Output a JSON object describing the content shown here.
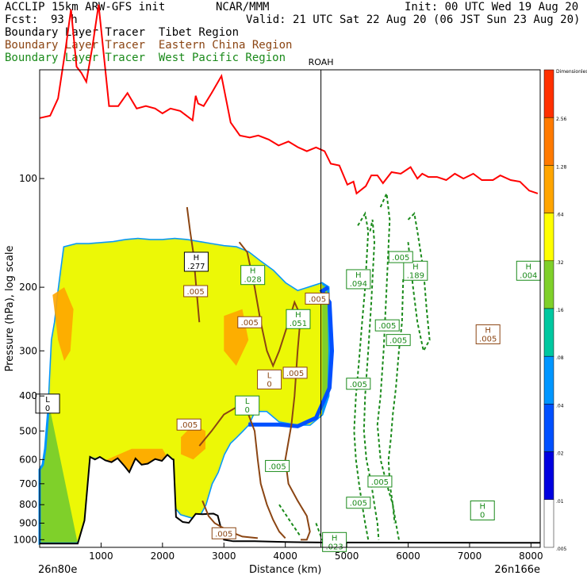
{
  "header": {
    "model": "ACCLIP 15km ARW-GFS init",
    "org": "NCAR/MMM",
    "init": "Init: 00 UTC Wed 19 Aug 20",
    "fcst_label": "Fcst:",
    "fcst_value": "93 h",
    "valid": "Valid: 21 UTC Sat 22 Aug 20 (06 JST Sun 23 Aug 20)",
    "line_tibet": "Boundary Layer Tracer  Tibet Region",
    "line_east_china": "Boundary Layer Tracer  Eastern China Region",
    "line_west_pacific": "Boundary Layer Tracer  West Pacific Region"
  },
  "colors": {
    "tibet": "#000000",
    "east_china": "#8b4513",
    "west_pacific": "#1a8a1a",
    "tropopause": "#ff0000",
    "terrain": "#000000"
  },
  "chart_data": {
    "type": "cross-section",
    "xlabel": "Distance (km)",
    "ylabel": "Pressure (hPa), log scale",
    "xlim": [
      0,
      8150
    ],
    "ylim": [
      1050,
      50
    ],
    "x_scale": "linear",
    "y_scale": "log",
    "x_ticks": [
      1000,
      2000,
      3000,
      4000,
      5000,
      6000,
      7000,
      8000
    ],
    "y_ticks": [
      100,
      200,
      300,
      400,
      500,
      600,
      700,
      800,
      900,
      1000
    ],
    "x_start_label": "26n80e",
    "x_end_label": "26n166e",
    "marker": {
      "name": "ROAH",
      "x": 4580
    },
    "colorbar": {
      "levels": [
        "Dimensionless",
        "2.56",
        "1.28",
        ".64",
        ".32",
        ".16",
        ".08",
        ".04",
        ".02",
        ".01",
        ".005"
      ],
      "colors": [
        "#ff3000",
        "#ff7a00",
        "#ffa500",
        "#ffff00",
        "#7fd02a",
        "#00c8a0",
        "#0096ff",
        "#0050ff",
        "#0000e0",
        "#ffffff"
      ]
    },
    "tropopause_red": [
      [
        0,
        68
      ],
      [
        170,
        67
      ],
      [
        300,
        60
      ],
      [
        420,
        44
      ],
      [
        510,
        34
      ],
      [
        600,
        49
      ],
      [
        680,
        51
      ],
      [
        760,
        54
      ],
      [
        860,
        43
      ],
      [
        960,
        33
      ],
      [
        1130,
        63
      ],
      [
        1280,
        63
      ],
      [
        1430,
        58
      ],
      [
        1580,
        64
      ],
      [
        1730,
        63
      ],
      [
        1880,
        64
      ],
      [
        2000,
        66
      ],
      [
        2130,
        64
      ],
      [
        2290,
        65
      ],
      [
        2490,
        69
      ],
      [
        2540,
        59
      ],
      [
        2580,
        62
      ],
      [
        2670,
        63
      ],
      [
        2800,
        58
      ],
      [
        2960,
        52
      ],
      [
        3110,
        70
      ],
      [
        3260,
        76
      ],
      [
        3420,
        77
      ],
      [
        3560,
        76
      ],
      [
        3730,
        78
      ],
      [
        3890,
        81
      ],
      [
        4050,
        79
      ],
      [
        4210,
        82
      ],
      [
        4350,
        84
      ],
      [
        4500,
        82
      ],
      [
        4640,
        84
      ],
      [
        4740,
        91
      ],
      [
        4880,
        92
      ],
      [
        5010,
        104
      ],
      [
        5110,
        102
      ],
      [
        5160,
        110
      ],
      [
        5310,
        105
      ],
      [
        5400,
        98
      ],
      [
        5500,
        98
      ],
      [
        5590,
        103
      ],
      [
        5730,
        96
      ],
      [
        5880,
        97
      ],
      [
        6040,
        93
      ],
      [
        6150,
        100
      ],
      [
        6230,
        97
      ],
      [
        6330,
        99
      ],
      [
        6470,
        99
      ],
      [
        6620,
        101
      ],
      [
        6760,
        97
      ],
      [
        6900,
        100
      ],
      [
        7060,
        97
      ],
      [
        7200,
        101
      ],
      [
        7380,
        101
      ],
      [
        7500,
        98
      ],
      [
        7670,
        101
      ],
      [
        7820,
        102
      ],
      [
        7970,
        108
      ],
      [
        8110,
        110
      ]
    ],
    "terrain_surface": [
      [
        0,
        1025
      ],
      [
        270,
        1025
      ],
      [
        430,
        1025
      ],
      [
        620,
        1025
      ],
      [
        730,
        885
      ],
      [
        820,
        590
      ],
      [
        900,
        600
      ],
      [
        980,
        590
      ],
      [
        1070,
        603
      ],
      [
        1170,
        610
      ],
      [
        1270,
        595
      ],
      [
        1380,
        625
      ],
      [
        1460,
        650
      ],
      [
        1560,
        596
      ],
      [
        1660,
        620
      ],
      [
        1760,
        616
      ],
      [
        1880,
        598
      ],
      [
        1990,
        605
      ],
      [
        2080,
        582
      ],
      [
        2160,
        598
      ],
      [
        2180,
        600
      ],
      [
        2220,
        865
      ],
      [
        2330,
        893
      ],
      [
        2430,
        898
      ],
      [
        2540,
        848
      ],
      [
        2650,
        850
      ],
      [
        2750,
        848
      ],
      [
        2830,
        847
      ],
      [
        2900,
        858
      ],
      [
        3000,
        1000
      ],
      [
        3150,
        1010
      ],
      [
        3500,
        1010
      ],
      [
        4000,
        1015
      ],
      [
        4600,
        1018
      ],
      [
        8150,
        1020
      ]
    ],
    "tracer_green_curtain": [
      [
        0,
        640
      ],
      [
        50,
        620
      ],
      [
        90,
        560
      ],
      [
        150,
        420
      ],
      [
        200,
        280
      ],
      [
        250,
        250
      ],
      [
        300,
        210
      ],
      [
        350,
        180
      ],
      [
        400,
        155
      ],
      [
        600,
        152
      ],
      [
        800,
        152
      ],
      [
        1000,
        151
      ],
      [
        1200,
        150
      ],
      [
        1400,
        148
      ],
      [
        1600,
        147
      ],
      [
        1800,
        148
      ],
      [
        2000,
        148
      ],
      [
        2200,
        147
      ],
      [
        2400,
        148
      ],
      [
        2600,
        150
      ],
      [
        2800,
        152
      ],
      [
        3000,
        154
      ],
      [
        3200,
        155
      ],
      [
        3400,
        160
      ],
      [
        3600,
        170
      ],
      [
        3800,
        180
      ],
      [
        4000,
        195
      ],
      [
        4200,
        205
      ],
      [
        4400,
        200
      ],
      [
        4600,
        195
      ],
      [
        4700,
        200
      ],
      [
        4720,
        300
      ],
      [
        4700,
        400
      ],
      [
        4600,
        450
      ],
      [
        4400,
        480
      ],
      [
        4200,
        480
      ],
      [
        3900,
        470
      ],
      [
        3700,
        440
      ],
      [
        3500,
        440
      ],
      [
        3400,
        480
      ],
      [
        3300,
        500
      ],
      [
        3200,
        520
      ],
      [
        3100,
        540
      ],
      [
        3000,
        580
      ],
      [
        2900,
        650
      ],
      [
        2800,
        700
      ],
      [
        2700,
        800
      ],
      [
        2600,
        860
      ],
      [
        2500,
        870
      ],
      [
        2400,
        860
      ],
      [
        2300,
        850
      ],
      [
        2200,
        810
      ],
      [
        2180,
        600
      ],
      [
        2080,
        582
      ],
      [
        1760,
        616
      ],
      [
        1460,
        650
      ],
      [
        1070,
        603
      ],
      [
        820,
        590
      ],
      [
        730,
        885
      ],
      [
        620,
        1025
      ],
      [
        0,
        1025
      ]
    ],
    "tracer_orange_patches": [
      [
        [
          210,
          210
        ],
        [
          400,
          200
        ],
        [
          550,
          230
        ],
        [
          500,
          300
        ],
        [
          400,
          320
        ],
        [
          300,
          280
        ],
        [
          210,
          210
        ]
      ],
      [
        [
          800,
          700
        ],
        [
          1100,
          600
        ],
        [
          1500,
          560
        ],
        [
          2000,
          560
        ],
        [
          2100,
          600
        ],
        [
          2000,
          700
        ],
        [
          1500,
          700
        ],
        [
          1100,
          720
        ],
        [
          800,
          700
        ]
      ],
      [
        [
          2300,
          520
        ],
        [
          2500,
          480
        ],
        [
          2700,
          500
        ],
        [
          2700,
          560
        ],
        [
          2500,
          600
        ],
        [
          2300,
          580
        ],
        [
          2300,
          520
        ]
      ],
      [
        [
          3000,
          240
        ],
        [
          3300,
          230
        ],
        [
          3400,
          280
        ],
        [
          3200,
          330
        ],
        [
          3000,
          300
        ],
        [
          3000,
          240
        ]
      ]
    ],
    "tracer_blue_band": [
      [
        3400,
        480
      ],
      [
        3600,
        480
      ],
      [
        3900,
        480
      ],
      [
        4200,
        485
      ],
      [
        4500,
        460
      ],
      [
        4720,
        380
      ],
      [
        4760,
        300
      ],
      [
        4720,
        220
      ],
      [
        4600,
        205
      ],
      [
        4700,
        200
      ]
    ],
    "tracer_brown_contours": [
      [
        [
          3250,
          150
        ],
        [
          3380,
          160
        ],
        [
          3500,
          200
        ],
        [
          3600,
          250
        ],
        [
          3700,
          300
        ],
        [
          3800,
          330
        ],
        [
          3900,
          300
        ],
        [
          4050,
          250
        ],
        [
          4150,
          220
        ],
        [
          4250,
          240
        ],
        [
          4200,
          300
        ],
        [
          4150,
          400
        ],
        [
          4100,
          480
        ],
        [
          4000,
          600
        ],
        [
          4050,
          700
        ],
        [
          4200,
          780
        ],
        [
          4350,
          860
        ],
        [
          4400,
          950
        ],
        [
          4350,
          1000
        ],
        [
          4250,
          1000
        ]
      ],
      [
        [
          2600,
          550
        ],
        [
          2800,
          500
        ],
        [
          3000,
          450
        ],
        [
          3200,
          430
        ],
        [
          3400,
          450
        ],
        [
          3500,
          500
        ],
        [
          3550,
          600
        ],
        [
          3600,
          700
        ],
        [
          3700,
          800
        ],
        [
          3800,
          880
        ],
        [
          3900,
          950
        ],
        [
          4000,
          990
        ]
      ],
      [
        [
          2400,
          120
        ],
        [
          2450,
          140
        ],
        [
          2500,
          160
        ],
        [
          2550,
          200
        ],
        [
          2600,
          250
        ]
      ],
      [
        [
          2650,
          780
        ],
        [
          2750,
          860
        ],
        [
          2850,
          900
        ],
        [
          2950,
          920
        ],
        [
          3100,
          950
        ],
        [
          3300,
          980
        ],
        [
          3550,
          990
        ]
      ]
    ],
    "tracer_green_dashed": [
      [
        [
          5180,
          135
        ],
        [
          5300,
          125
        ],
        [
          5350,
          140
        ],
        [
          5300,
          200
        ],
        [
          5250,
          250
        ],
        [
          5200,
          320
        ],
        [
          5150,
          400
        ],
        [
          5120,
          500
        ],
        [
          5150,
          600
        ],
        [
          5200,
          700
        ],
        [
          5250,
          800
        ],
        [
          5300,
          900
        ],
        [
          5350,
          1000
        ]
      ],
      [
        [
          5380,
          140
        ],
        [
          5420,
          130
        ],
        [
          5450,
          150
        ],
        [
          5400,
          220
        ],
        [
          5350,
          300
        ],
        [
          5300,
          400
        ],
        [
          5280,
          500
        ],
        [
          5320,
          600
        ],
        [
          5400,
          700
        ],
        [
          5450,
          800
        ],
        [
          5500,
          900
        ],
        [
          5520,
          1000
        ]
      ],
      [
        [
          5550,
          120
        ],
        [
          5650,
          110
        ],
        [
          5700,
          130
        ],
        [
          5650,
          200
        ],
        [
          5600,
          300
        ],
        [
          5550,
          400
        ],
        [
          5500,
          480
        ],
        [
          5550,
          600
        ],
        [
          5650,
          700
        ],
        [
          5750,
          800
        ],
        [
          5800,
          900
        ],
        [
          5850,
          1000
        ]
      ],
      [
        [
          6000,
          130
        ],
        [
          6100,
          125
        ],
        [
          6150,
          140
        ],
        [
          6250,
          180
        ],
        [
          6300,
          230
        ],
        [
          6350,
          280
        ],
        [
          6250,
          300
        ],
        [
          6150,
          250
        ],
        [
          6080,
          200
        ],
        [
          6000,
          150
        ]
      ],
      [
        [
          5920,
          190
        ],
        [
          5900,
          250
        ],
        [
          5850,
          300
        ],
        [
          5800,
          380
        ],
        [
          5750,
          450
        ],
        [
          5720,
          520
        ],
        [
          5680,
          600
        ],
        [
          5700,
          700
        ],
        [
          5750,
          800
        ],
        [
          5780,
          900
        ]
      ],
      [
        [
          4500,
          900
        ],
        [
          4600,
          1000
        ],
        [
          4800,
          1020
        ]
      ],
      [
        [
          3900,
          800
        ],
        [
          4100,
          900
        ],
        [
          4250,
          980
        ]
      ]
    ],
    "box_labels": [
      {
        "text": "H",
        "value": ".277",
        "x": 2550,
        "y": 170,
        "color": "tibet"
      },
      {
        "text": "",
        "value": ".005",
        "x": 2540,
        "y": 205,
        "color": "east_china"
      },
      {
        "text": "H",
        "value": ".028",
        "x": 3470,
        "y": 185,
        "color": "west_pacific"
      },
      {
        "text": "",
        "value": ".005",
        "x": 3420,
        "y": 250,
        "color": "east_china"
      },
      {
        "text": "H",
        "value": ".051",
        "x": 4210,
        "y": 245,
        "color": "west_pacific"
      },
      {
        "text": "",
        "value": ".005",
        "x": 4520,
        "y": 215,
        "color": "east_china"
      },
      {
        "text": "",
        "value": ".005",
        "x": 4160,
        "y": 345,
        "color": "east_china"
      },
      {
        "text": "L",
        "value": "0",
        "x": 3740,
        "y": 360,
        "color": "east_china"
      },
      {
        "text": "L",
        "value": "0",
        "x": 3380,
        "y": 425,
        "color": "west_pacific"
      },
      {
        "text": "",
        "value": ".005",
        "x": 2430,
        "y": 480,
        "color": "east_china"
      },
      {
        "text": "L",
        "value": "0",
        "x": 130,
        "y": 420,
        "color": "tibet"
      },
      {
        "text": "H",
        "value": ".094",
        "x": 5190,
        "y": 190,
        "color": "west_pacific"
      },
      {
        "text": "H",
        "value": ".189",
        "x": 6120,
        "y": 180,
        "color": "west_pacific"
      },
      {
        "text": "",
        "value": ".005",
        "x": 5880,
        "y": 165,
        "color": "west_pacific"
      },
      {
        "text": "",
        "value": ".005",
        "x": 5660,
        "y": 255,
        "color": "west_pacific"
      },
      {
        "text": "",
        "value": ".005",
        "x": 5840,
        "y": 280,
        "color": "west_pacific"
      },
      {
        "text": "H",
        "value": ".005",
        "x": 7300,
        "y": 270,
        "color": "east_china"
      },
      {
        "text": "H",
        "value": ".004",
        "x": 7960,
        "y": 180,
        "color": "west_pacific"
      },
      {
        "text": "",
        "value": ".005",
        "x": 5190,
        "y": 370,
        "color": "west_pacific"
      },
      {
        "text": "",
        "value": ".005",
        "x": 3870,
        "y": 625,
        "color": "west_pacific"
      },
      {
        "text": "",
        "value": ".005",
        "x": 5540,
        "y": 690,
        "color": "west_pacific"
      },
      {
        "text": "",
        "value": ".005",
        "x": 5190,
        "y": 790,
        "color": "west_pacific"
      },
      {
        "text": "H",
        "value": "0",
        "x": 7210,
        "y": 830,
        "color": "west_pacific"
      },
      {
        "text": "",
        "value": ".005",
        "x": 3000,
        "y": 960,
        "color": "east_china"
      },
      {
        "text": "H",
        "value": ".023",
        "x": 4800,
        "y": 1015,
        "color": "west_pacific"
      }
    ]
  }
}
